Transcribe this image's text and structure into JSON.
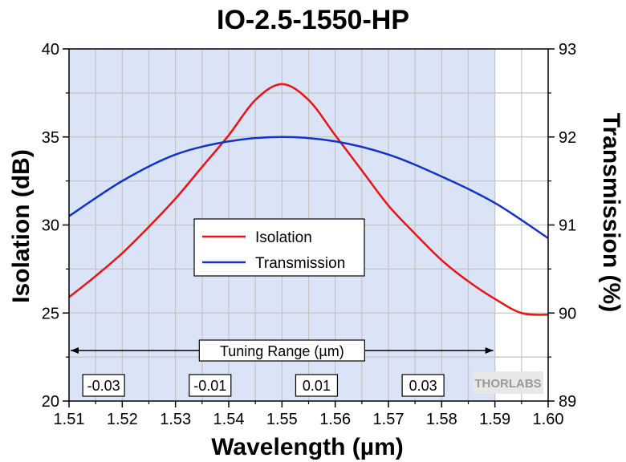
{
  "chart_data": {
    "type": "line",
    "title": "IO-2.5-1550-HP",
    "xlabel": "Wavelength (µm)",
    "ylabel": "Isolation (dB)",
    "y2label": "Transmission (%)",
    "xlim": [
      1.51,
      1.6
    ],
    "ylim": [
      20,
      40
    ],
    "y2lim": [
      89,
      93
    ],
    "xticks": [
      "1.51",
      "1.52",
      "1.53",
      "1.54",
      "1.55",
      "1.56",
      "1.57",
      "1.58",
      "1.59",
      "1.60"
    ],
    "yticks": [
      "20",
      "25",
      "30",
      "35",
      "40"
    ],
    "y2ticks": [
      "89",
      "90",
      "91",
      "92",
      "93"
    ],
    "grid": true,
    "shaded_region": {
      "x": [
        1.51,
        1.59
      ],
      "color": "#dbe4f6"
    },
    "series": [
      {
        "name": "Isolation",
        "axis": "left",
        "color": "#ee1111",
        "x": [
          1.51,
          1.515,
          1.52,
          1.525,
          1.53,
          1.535,
          1.54,
          1.545,
          1.55,
          1.555,
          1.56,
          1.565,
          1.57,
          1.575,
          1.58,
          1.585,
          1.59,
          1.595,
          1.6
        ],
        "y": [
          25.9,
          27.1,
          28.4,
          29.9,
          31.5,
          33.3,
          35.1,
          37.1,
          38.0,
          37.1,
          35.1,
          33.1,
          31.1,
          29.5,
          28.0,
          26.8,
          25.8,
          25.0,
          24.9
        ]
      },
      {
        "name": "Transmission",
        "axis": "right",
        "color": "#1133cc",
        "x": [
          1.51,
          1.52,
          1.53,
          1.54,
          1.55,
          1.56,
          1.57,
          1.58,
          1.59,
          1.6
        ],
        "y": [
          91.1,
          91.5,
          91.8,
          91.95,
          92.0,
          91.95,
          91.8,
          91.55,
          91.25,
          90.85
        ]
      }
    ],
    "legend": {
      "placement": "center",
      "entries": [
        "Isolation",
        "Transmission"
      ]
    },
    "annotations": {
      "tuning_range": {
        "label": "Tuning Range (µm)",
        "x_start": 1.51,
        "x_end": 1.59
      },
      "offset_labels": [
        {
          "text": "-0.03",
          "x": 1.5165
        },
        {
          "text": "-0.01",
          "x": 1.5365
        },
        {
          "text": "0.01",
          "x": 1.5565
        },
        {
          "text": "0.03",
          "x": 1.5765
        }
      ]
    },
    "logo_text": "THORLABS"
  }
}
